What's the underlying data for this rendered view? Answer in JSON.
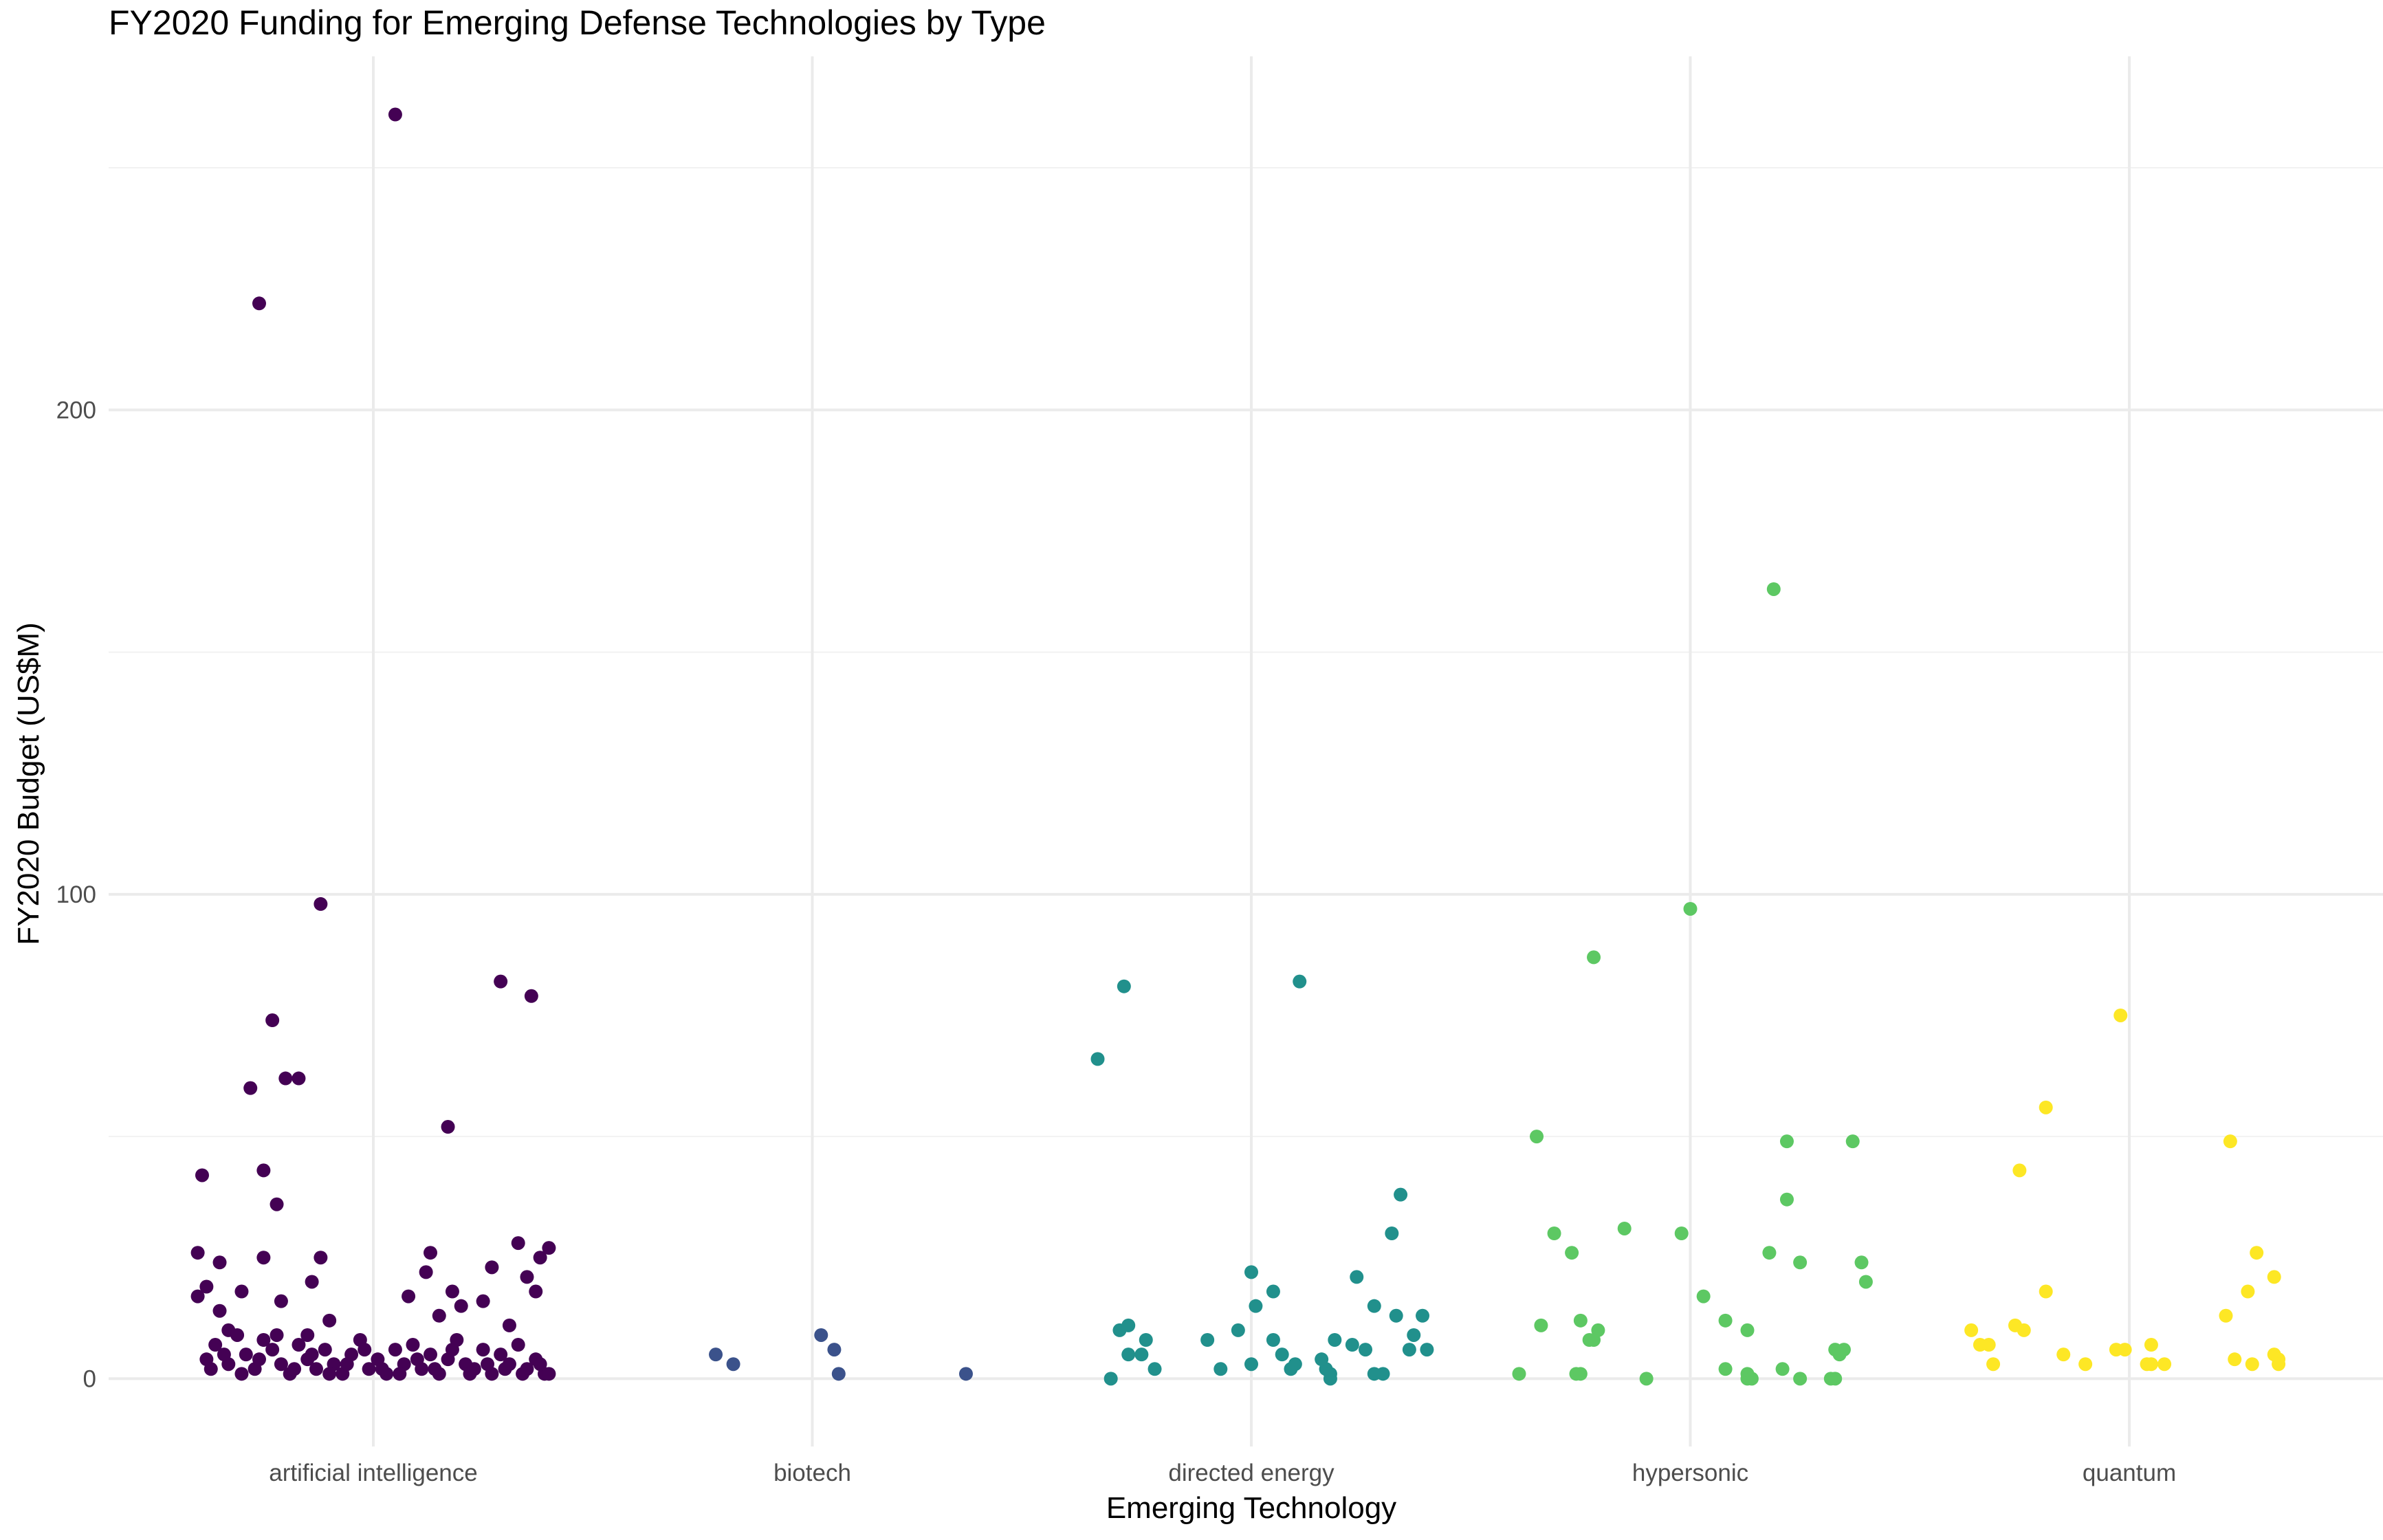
{
  "chart_data": {
    "type": "scatter",
    "title": "FY2020 Funding for Emerging Defense Technologies by Type",
    "xlabel": "Emerging Technology",
    "ylabel": "FY2020 Budget (US$M)",
    "categories": [
      "artificial intelligence",
      "biotech",
      "directed energy",
      "hypersonic",
      "quantum"
    ],
    "colors": [
      "#440154",
      "#3b528b",
      "#21908c",
      "#5dc863",
      "#fde725"
    ],
    "ylim": [
      -14,
      273
    ],
    "yticks": [
      0,
      100,
      200
    ],
    "ytick_labels": [
      "0",
      "100",
      "200"
    ],
    "grid": true,
    "legend": "none",
    "series": [
      {
        "name": "artificial intelligence",
        "points": [
          [
            0.05,
            261
          ],
          [
            -0.26,
            222
          ],
          [
            -0.12,
            98
          ],
          [
            0.29,
            82
          ],
          [
            0.36,
            79
          ],
          [
            -0.23,
            74
          ],
          [
            -0.2,
            62
          ],
          [
            -0.17,
            62
          ],
          [
            -0.28,
            60
          ],
          [
            0.17,
            52
          ],
          [
            -0.25,
            43
          ],
          [
            -0.39,
            42
          ],
          [
            -0.22,
            36
          ],
          [
            0.33,
            28
          ],
          [
            0.4,
            27
          ],
          [
            -0.4,
            26
          ],
          [
            -0.25,
            25
          ],
          [
            -0.12,
            25
          ],
          [
            0.13,
            26
          ],
          [
            -0.35,
            24
          ],
          [
            0.38,
            25
          ],
          [
            0.27,
            23
          ],
          [
            0.12,
            22
          ],
          [
            0.35,
            21
          ],
          [
            -0.14,
            20
          ],
          [
            -0.38,
            19
          ],
          [
            -0.3,
            18
          ],
          [
            0.08,
            17
          ],
          [
            0.18,
            18
          ],
          [
            -0.4,
            17
          ],
          [
            -0.35,
            14
          ],
          [
            0.25,
            16
          ],
          [
            0.37,
            18
          ],
          [
            -0.21,
            16
          ],
          [
            0.2,
            15
          ],
          [
            -0.33,
            10
          ],
          [
            -0.1,
            12
          ],
          [
            0.15,
            13
          ],
          [
            0.31,
            11
          ],
          [
            -0.15,
            9
          ],
          [
            -0.38,
            4
          ],
          [
            -0.36,
            7
          ],
          [
            -0.33,
            3
          ],
          [
            -0.31,
            9
          ],
          [
            -0.29,
            5
          ],
          [
            -0.27,
            2
          ],
          [
            -0.25,
            8
          ],
          [
            -0.23,
            6
          ],
          [
            -0.21,
            3
          ],
          [
            -0.19,
            1
          ],
          [
            -0.17,
            7
          ],
          [
            -0.15,
            4
          ],
          [
            -0.13,
            2
          ],
          [
            -0.11,
            6
          ],
          [
            -0.09,
            3
          ],
          [
            -0.07,
            1
          ],
          [
            -0.05,
            5
          ],
          [
            -0.03,
            8
          ],
          [
            -0.01,
            2
          ],
          [
            0.01,
            4
          ],
          [
            0.03,
            1
          ],
          [
            0.05,
            6
          ],
          [
            0.07,
            3
          ],
          [
            0.09,
            7
          ],
          [
            0.11,
            2
          ],
          [
            0.13,
            5
          ],
          [
            0.15,
            1
          ],
          [
            0.17,
            4
          ],
          [
            0.19,
            8
          ],
          [
            0.21,
            3
          ],
          [
            0.23,
            2
          ],
          [
            0.25,
            6
          ],
          [
            0.27,
            1
          ],
          [
            0.29,
            5
          ],
          [
            0.31,
            3
          ],
          [
            0.33,
            7
          ],
          [
            0.35,
            2
          ],
          [
            0.37,
            4
          ],
          [
            0.39,
            1
          ],
          [
            -0.37,
            2
          ],
          [
            -0.34,
            5
          ],
          [
            -0.3,
            1
          ],
          [
            -0.26,
            4
          ],
          [
            -0.22,
            9
          ],
          [
            -0.18,
            2
          ],
          [
            -0.14,
            5
          ],
          [
            -0.1,
            1
          ],
          [
            -0.06,
            3
          ],
          [
            -0.02,
            6
          ],
          [
            0.02,
            2
          ],
          [
            0.06,
            1
          ],
          [
            0.1,
            4
          ],
          [
            0.14,
            2
          ],
          [
            0.18,
            6
          ],
          [
            0.22,
            1
          ],
          [
            0.26,
            3
          ],
          [
            0.3,
            2
          ],
          [
            0.34,
            1
          ],
          [
            0.38,
            3
          ],
          [
            0.4,
            1
          ]
        ]
      },
      {
        "name": "biotech",
        "points": [
          [
            -0.22,
            5
          ],
          [
            -0.18,
            3
          ],
          [
            0.02,
            9
          ],
          [
            0.05,
            6
          ],
          [
            0.06,
            1
          ],
          [
            0.35,
            1
          ]
        ]
      },
      {
        "name": "directed energy",
        "points": [
          [
            -0.35,
            66
          ],
          [
            -0.29,
            81
          ],
          [
            0.11,
            82
          ],
          [
            0.34,
            38
          ],
          [
            0.32,
            30
          ],
          [
            0.0,
            22
          ],
          [
            0.05,
            18
          ],
          [
            0.24,
            21
          ],
          [
            0.28,
            15
          ],
          [
            0.01,
            15
          ],
          [
            -0.3,
            10
          ],
          [
            -0.28,
            11
          ],
          [
            -0.1,
            8
          ],
          [
            -0.03,
            10
          ],
          [
            0.05,
            8
          ],
          [
            0.19,
            8
          ],
          [
            0.23,
            7
          ],
          [
            0.33,
            13
          ],
          [
            0.39,
            13
          ],
          [
            0.37,
            9
          ],
          [
            0.4,
            6
          ],
          [
            0.36,
            6
          ],
          [
            0.26,
            6
          ],
          [
            -0.24,
            8
          ],
          [
            -0.32,
            0
          ],
          [
            -0.28,
            5
          ],
          [
            -0.25,
            5
          ],
          [
            -0.22,
            2
          ],
          [
            -0.07,
            2
          ],
          [
            0.0,
            3
          ],
          [
            0.07,
            5
          ],
          [
            0.09,
            2
          ],
          [
            0.1,
            3
          ],
          [
            0.17,
            2
          ],
          [
            0.18,
            0
          ],
          [
            0.28,
            1
          ],
          [
            0.3,
            1
          ],
          [
            0.16,
            4
          ],
          [
            0.18,
            1
          ]
        ]
      },
      {
        "name": "hypersonic",
        "points": [
          [
            0.19,
            163
          ],
          [
            0.0,
            97
          ],
          [
            -0.22,
            87
          ],
          [
            -0.35,
            50
          ],
          [
            0.22,
            49
          ],
          [
            0.37,
            49
          ],
          [
            0.22,
            37
          ],
          [
            -0.15,
            31
          ],
          [
            -0.31,
            30
          ],
          [
            -0.02,
            30
          ],
          [
            -0.27,
            26
          ],
          [
            0.18,
            26
          ],
          [
            0.39,
            24
          ],
          [
            0.25,
            24
          ],
          [
            0.4,
            20
          ],
          [
            0.03,
            17
          ],
          [
            -0.34,
            11
          ],
          [
            -0.25,
            12
          ],
          [
            -0.21,
            10
          ],
          [
            0.08,
            12
          ],
          [
            0.13,
            10
          ],
          [
            -0.22,
            8
          ],
          [
            -0.23,
            8
          ],
          [
            0.35,
            6
          ],
          [
            0.33,
            6
          ],
          [
            0.34,
            5
          ],
          [
            -0.39,
            1
          ],
          [
            -0.26,
            1
          ],
          [
            -0.25,
            1
          ],
          [
            -0.1,
            0
          ],
          [
            0.08,
            2
          ],
          [
            0.13,
            1
          ],
          [
            0.13,
            0
          ],
          [
            0.14,
            0
          ],
          [
            0.21,
            2
          ],
          [
            0.25,
            0
          ],
          [
            0.33,
            0
          ],
          [
            0.32,
            0
          ]
        ]
      },
      {
        "name": "quantum",
        "points": [
          [
            -0.02,
            75
          ],
          [
            -0.19,
            56
          ],
          [
            0.23,
            49
          ],
          [
            -0.25,
            43
          ],
          [
            0.29,
            26
          ],
          [
            0.33,
            21
          ],
          [
            -0.19,
            18
          ],
          [
            0.27,
            18
          ],
          [
            0.22,
            13
          ],
          [
            -0.26,
            11
          ],
          [
            -0.24,
            10
          ],
          [
            -0.36,
            10
          ],
          [
            -0.34,
            7
          ],
          [
            -0.32,
            7
          ],
          [
            0.05,
            7
          ],
          [
            -0.03,
            6
          ],
          [
            -0.01,
            6
          ],
          [
            -0.31,
            3
          ],
          [
            -0.15,
            5
          ],
          [
            -0.1,
            3
          ],
          [
            0.05,
            3
          ],
          [
            0.04,
            3
          ],
          [
            0.08,
            3
          ],
          [
            0.24,
            4
          ],
          [
            0.28,
            3
          ],
          [
            0.33,
            5
          ],
          [
            0.34,
            4
          ],
          [
            0.34,
            3
          ]
        ]
      }
    ]
  }
}
